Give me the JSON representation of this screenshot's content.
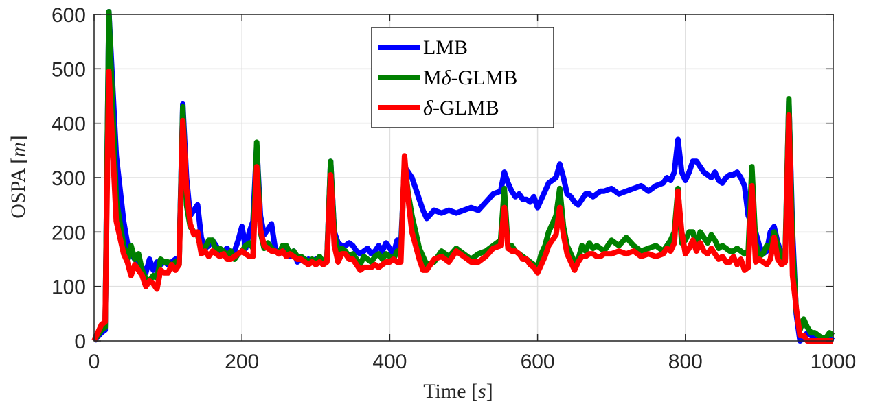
{
  "chart_data": {
    "type": "line",
    "xlabel": {
      "pre": "Time [",
      "var": "s",
      "post": "]"
    },
    "ylabel": {
      "pre": "OSPA [",
      "var": "m",
      "post": "]"
    },
    "xlim": [
      0,
      1000
    ],
    "ylim": [
      0,
      600
    ],
    "xticks": [
      0,
      200,
      400,
      600,
      800,
      1000
    ],
    "yticks": [
      0,
      100,
      200,
      300,
      400,
      500,
      600
    ],
    "grid": true,
    "legend_position": "top-center",
    "series": [
      {
        "name": "LMB",
        "legend_parts": {
          "pre": "LMB",
          "sym": "",
          "post": ""
        },
        "color": "#0000ff",
        "x": [
          0,
          10,
          15,
          20,
          30,
          40,
          45,
          50,
          55,
          60,
          65,
          70,
          75,
          80,
          85,
          90,
          95,
          100,
          105,
          110,
          115,
          120,
          125,
          130,
          135,
          140,
          145,
          150,
          155,
          160,
          165,
          170,
          175,
          180,
          185,
          190,
          195,
          200,
          205,
          210,
          215,
          220,
          225,
          230,
          235,
          240,
          245,
          250,
          255,
          260,
          265,
          270,
          275,
          280,
          285,
          290,
          295,
          300,
          305,
          310,
          315,
          320,
          325,
          330,
          335,
          340,
          345,
          350,
          355,
          360,
          365,
          370,
          375,
          380,
          385,
          390,
          395,
          400,
          405,
          410,
          415,
          420,
          425,
          430,
          435,
          440,
          445,
          450,
          460,
          470,
          480,
          490,
          500,
          510,
          520,
          530,
          540,
          550,
          555,
          560,
          565,
          570,
          575,
          580,
          585,
          590,
          595,
          600,
          605,
          610,
          615,
          620,
          625,
          630,
          635,
          640,
          645,
          650,
          655,
          660,
          665,
          670,
          675,
          680,
          685,
          690,
          700,
          710,
          720,
          730,
          740,
          750,
          760,
          770,
          775,
          780,
          785,
          790,
          795,
          800,
          805,
          810,
          815,
          820,
          825,
          830,
          835,
          840,
          845,
          850,
          855,
          860,
          865,
          870,
          875,
          880,
          885,
          890,
          895,
          900,
          905,
          910,
          915,
          920,
          925,
          930,
          935,
          940,
          945,
          950,
          955,
          960,
          965,
          970,
          975,
          980,
          985,
          990,
          995,
          1000
        ],
        "values": [
          0,
          15,
          20,
          605,
          340,
          220,
          180,
          160,
          150,
          145,
          135,
          125,
          150,
          130,
          145,
          140,
          145,
          140,
          145,
          150,
          145,
          435,
          300,
          230,
          240,
          250,
          190,
          170,
          175,
          185,
          175,
          165,
          165,
          170,
          160,
          165,
          185,
          210,
          170,
          200,
          220,
          360,
          230,
          195,
          205,
          215,
          170,
          160,
          165,
          165,
          155,
          165,
          145,
          150,
          145,
          150,
          145,
          150,
          145,
          145,
          150,
          330,
          200,
          180,
          175,
          175,
          180,
          175,
          165,
          160,
          165,
          170,
          160,
          165,
          175,
          165,
          180,
          170,
          160,
          185,
          175,
          320,
          310,
          300,
          280,
          260,
          240,
          225,
          240,
          235,
          240,
          235,
          240,
          245,
          240,
          255,
          270,
          275,
          310,
          290,
          275,
          265,
          270,
          260,
          260,
          255,
          265,
          245,
          260,
          275,
          290,
          295,
          300,
          325,
          300,
          270,
          265,
          255,
          250,
          260,
          270,
          270,
          265,
          270,
          275,
          275,
          280,
          270,
          275,
          280,
          285,
          275,
          285,
          290,
          300,
          295,
          310,
          370,
          310,
          295,
          310,
          330,
          330,
          320,
          310,
          305,
          300,
          310,
          295,
          290,
          300,
          305,
          305,
          310,
          300,
          285,
          230,
          215,
          200,
          175,
          160,
          165,
          200,
          210,
          180,
          160,
          150,
          440,
          200,
          50,
          0,
          5,
          15,
          10,
          5,
          5,
          5,
          0,
          5,
          0
        ]
      },
      {
        "name": "Mδ-GLMB",
        "legend_parts": {
          "pre": "M",
          "sym": "δ",
          "post": "-GLMB"
        },
        "color": "#008000",
        "x": [
          0,
          10,
          15,
          20,
          30,
          40,
          45,
          50,
          55,
          60,
          65,
          70,
          75,
          80,
          85,
          90,
          95,
          100,
          105,
          110,
          115,
          120,
          125,
          130,
          135,
          140,
          145,
          150,
          155,
          160,
          165,
          170,
          175,
          180,
          185,
          190,
          195,
          200,
          205,
          210,
          215,
          220,
          225,
          230,
          235,
          240,
          245,
          250,
          255,
          260,
          265,
          270,
          275,
          280,
          285,
          290,
          295,
          300,
          305,
          310,
          315,
          320,
          325,
          330,
          335,
          340,
          345,
          350,
          355,
          360,
          365,
          370,
          375,
          380,
          385,
          390,
          395,
          400,
          405,
          410,
          415,
          420,
          425,
          430,
          435,
          440,
          445,
          450,
          460,
          470,
          480,
          490,
          500,
          510,
          520,
          530,
          540,
          550,
          555,
          560,
          565,
          570,
          575,
          580,
          585,
          590,
          595,
          600,
          605,
          610,
          615,
          620,
          625,
          630,
          635,
          640,
          645,
          650,
          655,
          660,
          665,
          670,
          675,
          680,
          685,
          690,
          700,
          710,
          720,
          730,
          740,
          750,
          760,
          770,
          775,
          780,
          785,
          790,
          795,
          800,
          805,
          810,
          815,
          820,
          825,
          830,
          835,
          840,
          845,
          850,
          855,
          860,
          865,
          870,
          875,
          880,
          885,
          890,
          895,
          900,
          905,
          910,
          915,
          920,
          925,
          930,
          935,
          940,
          945,
          950,
          955,
          960,
          965,
          970,
          975,
          980,
          985,
          990,
          995,
          1000
        ],
        "values": [
          0,
          20,
          25,
          605,
          260,
          175,
          150,
          175,
          150,
          160,
          130,
          115,
          110,
          120,
          115,
          150,
          145,
          145,
          135,
          145,
          140,
          430,
          250,
          210,
          200,
          195,
          165,
          170,
          185,
          185,
          165,
          170,
          165,
          155,
          165,
          150,
          160,
          165,
          175,
          180,
          170,
          365,
          200,
          170,
          180,
          170,
          165,
          160,
          175,
          175,
          160,
          165,
          155,
          155,
          150,
          145,
          150,
          145,
          155,
          145,
          150,
          330,
          195,
          165,
          170,
          165,
          155,
          160,
          150,
          140,
          155,
          150,
          145,
          155,
          160,
          150,
          160,
          155,
          150,
          165,
          160,
          330,
          270,
          230,
          200,
          170,
          155,
          140,
          145,
          165,
          155,
          170,
          160,
          150,
          160,
          165,
          175,
          185,
          280,
          170,
          175,
          165,
          160,
          155,
          150,
          145,
          140,
          135,
          160,
          175,
          200,
          215,
          230,
          280,
          210,
          175,
          160,
          145,
          150,
          175,
          165,
          180,
          170,
          175,
          170,
          165,
          185,
          175,
          190,
          175,
          165,
          170,
          175,
          165,
          175,
          185,
          200,
          280,
          180,
          185,
          200,
          200,
          175,
          200,
          190,
          180,
          195,
          185,
          170,
          175,
          170,
          165,
          165,
          170,
          165,
          160,
          165,
          320,
          180,
          155,
          160,
          175,
          170,
          200,
          175,
          150,
          160,
          445,
          175,
          55,
          20,
          40,
          25,
          15,
          15,
          10,
          5,
          5,
          15,
          10
        ]
      },
      {
        "name": "δ-GLMB",
        "legend_parts": {
          "pre": "",
          "sym": "δ",
          "post": "-GLMB"
        },
        "color": "#ff0000",
        "x": [
          0,
          10,
          15,
          20,
          30,
          40,
          45,
          50,
          55,
          60,
          65,
          70,
          75,
          80,
          85,
          90,
          95,
          100,
          105,
          110,
          115,
          120,
          125,
          130,
          135,
          140,
          145,
          150,
          155,
          160,
          165,
          170,
          175,
          180,
          185,
          190,
          195,
          200,
          205,
          210,
          215,
          220,
          225,
          230,
          235,
          240,
          245,
          250,
          255,
          260,
          265,
          270,
          275,
          280,
          285,
          290,
          295,
          300,
          305,
          310,
          315,
          320,
          325,
          330,
          335,
          340,
          345,
          350,
          355,
          360,
          365,
          370,
          375,
          380,
          385,
          390,
          395,
          400,
          405,
          410,
          415,
          420,
          425,
          430,
          435,
          440,
          445,
          450,
          460,
          470,
          480,
          490,
          500,
          510,
          520,
          530,
          540,
          550,
          555,
          560,
          565,
          570,
          575,
          580,
          585,
          590,
          595,
          600,
          605,
          610,
          615,
          620,
          625,
          630,
          635,
          640,
          645,
          650,
          655,
          660,
          665,
          670,
          675,
          680,
          685,
          690,
          700,
          710,
          720,
          730,
          740,
          750,
          760,
          770,
          775,
          780,
          785,
          790,
          795,
          800,
          805,
          810,
          815,
          820,
          825,
          830,
          835,
          840,
          845,
          850,
          855,
          860,
          865,
          870,
          875,
          880,
          885,
          890,
          895,
          900,
          905,
          910,
          915,
          920,
          925,
          930,
          935,
          940,
          945,
          950,
          955,
          960,
          965,
          970,
          975,
          980,
          985,
          990,
          995,
          1000
        ],
        "values": [
          0,
          30,
          35,
          495,
          220,
          160,
          145,
          120,
          140,
          130,
          120,
          100,
          110,
          105,
          95,
          130,
          125,
          125,
          140,
          130,
          140,
          405,
          280,
          215,
          195,
          200,
          160,
          165,
          155,
          165,
          160,
          155,
          160,
          150,
          150,
          155,
          160,
          165,
          160,
          155,
          155,
          320,
          205,
          175,
          170,
          165,
          165,
          160,
          165,
          155,
          160,
          155,
          150,
          150,
          145,
          140,
          145,
          140,
          145,
          140,
          145,
          305,
          175,
          145,
          160,
          160,
          150,
          150,
          140,
          130,
          135,
          135,
          135,
          140,
          135,
          140,
          145,
          145,
          150,
          145,
          145,
          340,
          260,
          200,
          175,
          150,
          130,
          130,
          150,
          155,
          145,
          165,
          155,
          145,
          145,
          155,
          170,
          175,
          245,
          170,
          165,
          165,
          160,
          150,
          150,
          140,
          135,
          125,
          140,
          155,
          175,
          185,
          195,
          245,
          195,
          160,
          145,
          130,
          145,
          155,
          155,
          160,
          160,
          155,
          155,
          160,
          160,
          165,
          160,
          165,
          155,
          160,
          155,
          160,
          170,
          165,
          180,
          275,
          200,
          160,
          170,
          185,
          165,
          180,
          165,
          160,
          170,
          160,
          150,
          155,
          145,
          145,
          155,
          140,
          150,
          130,
          135,
          285,
          145,
          150,
          145,
          140,
          150,
          190,
          150,
          140,
          145,
          415,
          120,
          60,
          10,
          10,
          0,
          0,
          0,
          0,
          0,
          0,
          0,
          0
        ]
      }
    ]
  }
}
